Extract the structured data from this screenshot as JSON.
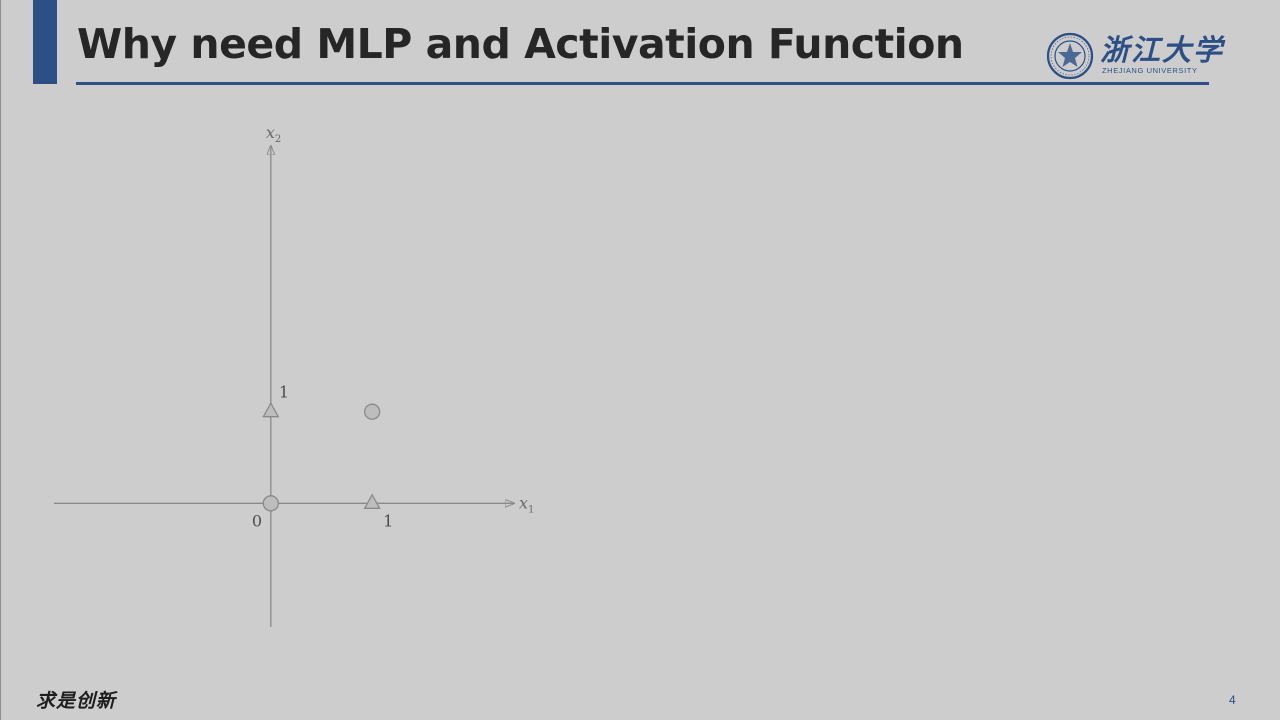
{
  "slide": {
    "title": "Why need MLP and Activation Function",
    "page_number": "4",
    "motto": "求是创新"
  },
  "logo": {
    "name_cn": "浙江大学",
    "name_en": "ZHEJIANG UNIVERSITY",
    "color": "#2c4f86"
  },
  "theme": {
    "accent": "#2c4f86",
    "background": "#cdcdcd",
    "title_color": "#262626"
  },
  "chart_data": {
    "type": "scatter",
    "xlabel": "x",
    "xlabel_sub": "1",
    "ylabel": "x",
    "ylabel_sub": "2",
    "origin_label": "0",
    "x_tick_label": "1",
    "y_tick_label": "1",
    "xlim": [
      -2.14,
      2.4
    ],
    "ylim": [
      -1.35,
      3.9
    ],
    "grid": false,
    "points": [
      {
        "x": 0,
        "y": 0,
        "marker": "circle",
        "label": ""
      },
      {
        "x": 1,
        "y": 1,
        "marker": "circle",
        "label": ""
      },
      {
        "x": 0,
        "y": 1,
        "marker": "triangle",
        "label": ""
      },
      {
        "x": 1,
        "y": 0,
        "marker": "triangle",
        "label": ""
      }
    ]
  }
}
